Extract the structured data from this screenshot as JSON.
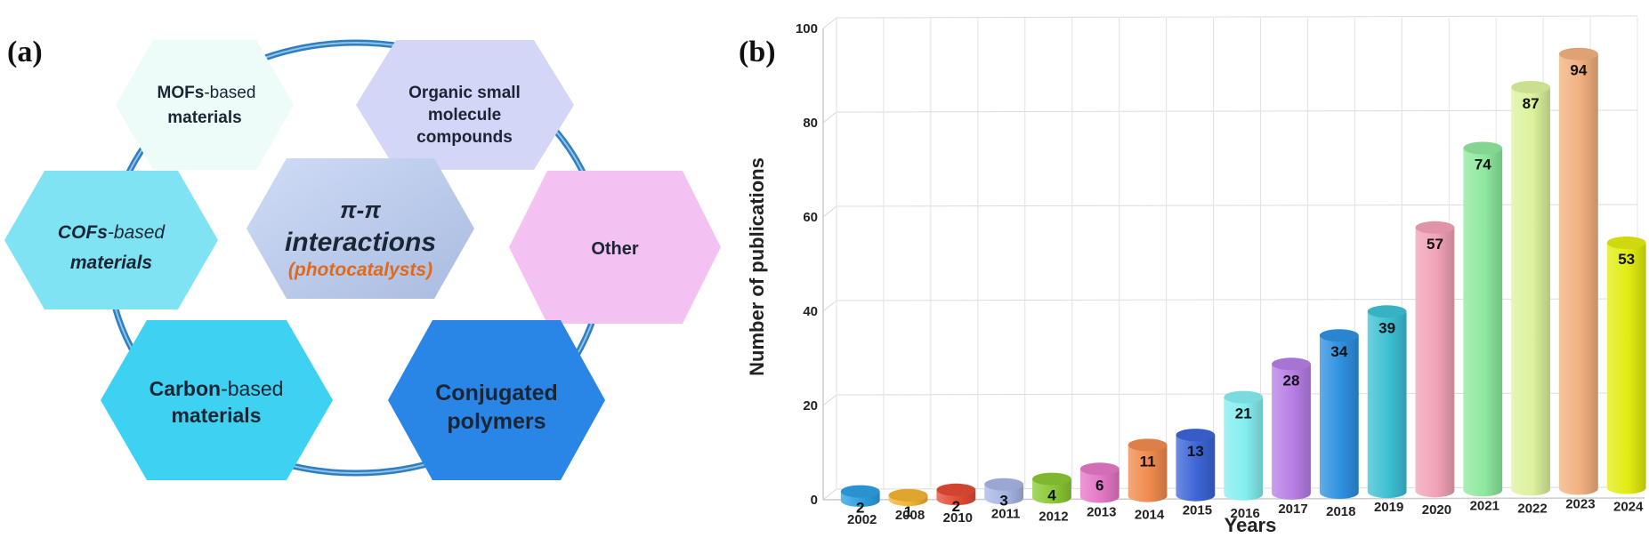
{
  "panel_a": {
    "label": "(a)",
    "center": {
      "line1": "π-π",
      "line2": "interactions",
      "line3": "(photocatalysts)"
    },
    "hexagons": [
      {
        "key": "mofs",
        "line1_bold": "MOFs",
        "line1_rest": "-based",
        "line2": "materials",
        "color": "#edfcf9"
      },
      {
        "key": "organic",
        "line1_bold": "Organic small",
        "line1_rest": "",
        "line2": "molecule",
        "line3": "compounds",
        "color": "#d4d6f7"
      },
      {
        "key": "cofs",
        "line1_bold": "COFs",
        "line1_rest": "-based",
        "line2": "materials",
        "color": "#7fe3f4"
      },
      {
        "key": "other",
        "line1_bold": "Other",
        "line1_rest": "",
        "line2": "",
        "color": "#f3c2f2"
      },
      {
        "key": "carbon",
        "line1_bold": "Carbon",
        "line1_rest": "-based",
        "line2": "materials",
        "color": "#3dd2f2"
      },
      {
        "key": "conjugated",
        "line1_bold": "Conjugated",
        "line1_rest": "",
        "line2": "polymers",
        "color": "#2a86e6"
      }
    ],
    "ring_color": "#2f7fc0"
  },
  "panel_b": {
    "label": "(b)"
  },
  "chart_data": {
    "type": "bar",
    "style": "3d-cylinder",
    "title": "",
    "xlabel": "Years",
    "ylabel": "Number of publications",
    "ylim": [
      0,
      100
    ],
    "yticks": [
      0,
      20,
      40,
      60,
      80,
      100
    ],
    "categories": [
      "2002",
      "2008",
      "2010",
      "2011",
      "2012",
      "2013",
      "2014",
      "2015",
      "2016",
      "2017",
      "2018",
      "2019",
      "2020",
      "2021",
      "2022",
      "2023",
      "2024"
    ],
    "values": [
      2,
      1,
      2,
      3,
      4,
      6,
      11,
      13,
      21,
      28,
      34,
      39,
      57,
      74,
      87,
      94,
      53
    ],
    "colors": [
      "#2e9fe0",
      "#f2b332",
      "#e34b34",
      "#a6b6e4",
      "#8ac832",
      "#e476c6",
      "#f08a4e",
      "#3c64d6",
      "#84eef0",
      "#b77ee6",
      "#2e90e0",
      "#3cc0d4",
      "#f2a2b6",
      "#8ee89e",
      "#dcf29c",
      "#f2b07e",
      "#e2ec10"
    ]
  }
}
